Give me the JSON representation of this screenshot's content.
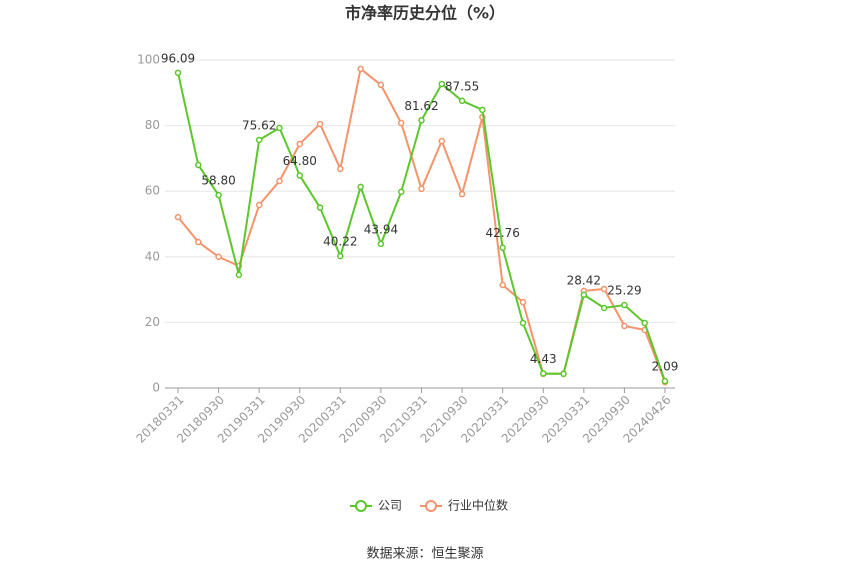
{
  "chart_data": {
    "type": "line",
    "title": "市净率历史分位（%）",
    "categories": [
      "20180331",
      null,
      "20180930",
      null,
      "20190331",
      null,
      "20190930",
      null,
      "20200331",
      null,
      "20200930",
      null,
      "20210331",
      null,
      "20210930",
      null,
      "20220331",
      null,
      "20220930",
      null,
      "20230331",
      null,
      "20230930",
      null,
      "20240426"
    ],
    "series": [
      {
        "name": "公司",
        "color": "#5cc72c",
        "values": [
          96.09,
          68,
          58.8,
          34.5,
          75.62,
          79.3,
          64.8,
          55,
          40.22,
          61.3,
          43.94,
          59.8,
          81.62,
          92.7,
          87.55,
          84.8,
          42.76,
          19.8,
          4.43,
          4.3,
          28.42,
          24.4,
          25.29,
          19.8,
          2.09
        ],
        "value_labels": [
          "96.09",
          null,
          "58.80",
          null,
          "75.62",
          null,
          "64.80",
          null,
          "40.22",
          null,
          "43.94",
          null,
          "81.62",
          null,
          "87.55",
          null,
          "42.76",
          null,
          "4.43",
          null,
          "28.42",
          null,
          "25.29",
          null,
          "2.09"
        ]
      },
      {
        "name": "行业中位数",
        "color": "#f4946a",
        "values": [
          52.1,
          44.5,
          40,
          37.2,
          55.8,
          63.1,
          74.4,
          80.5,
          66.8,
          97.3,
          92.4,
          80.8,
          60.7,
          75.3,
          59.1,
          82.6,
          31.4,
          26.2,
          4.3,
          4.4,
          29.6,
          30.2,
          18.9,
          17.7,
          1.8
        ]
      }
    ],
    "ylim": [
      0,
      100
    ],
    "yticks": [
      0,
      20,
      40,
      60,
      80,
      100
    ],
    "grid": true,
    "legend": "bottom",
    "source": "数据来源：恒生聚源"
  }
}
